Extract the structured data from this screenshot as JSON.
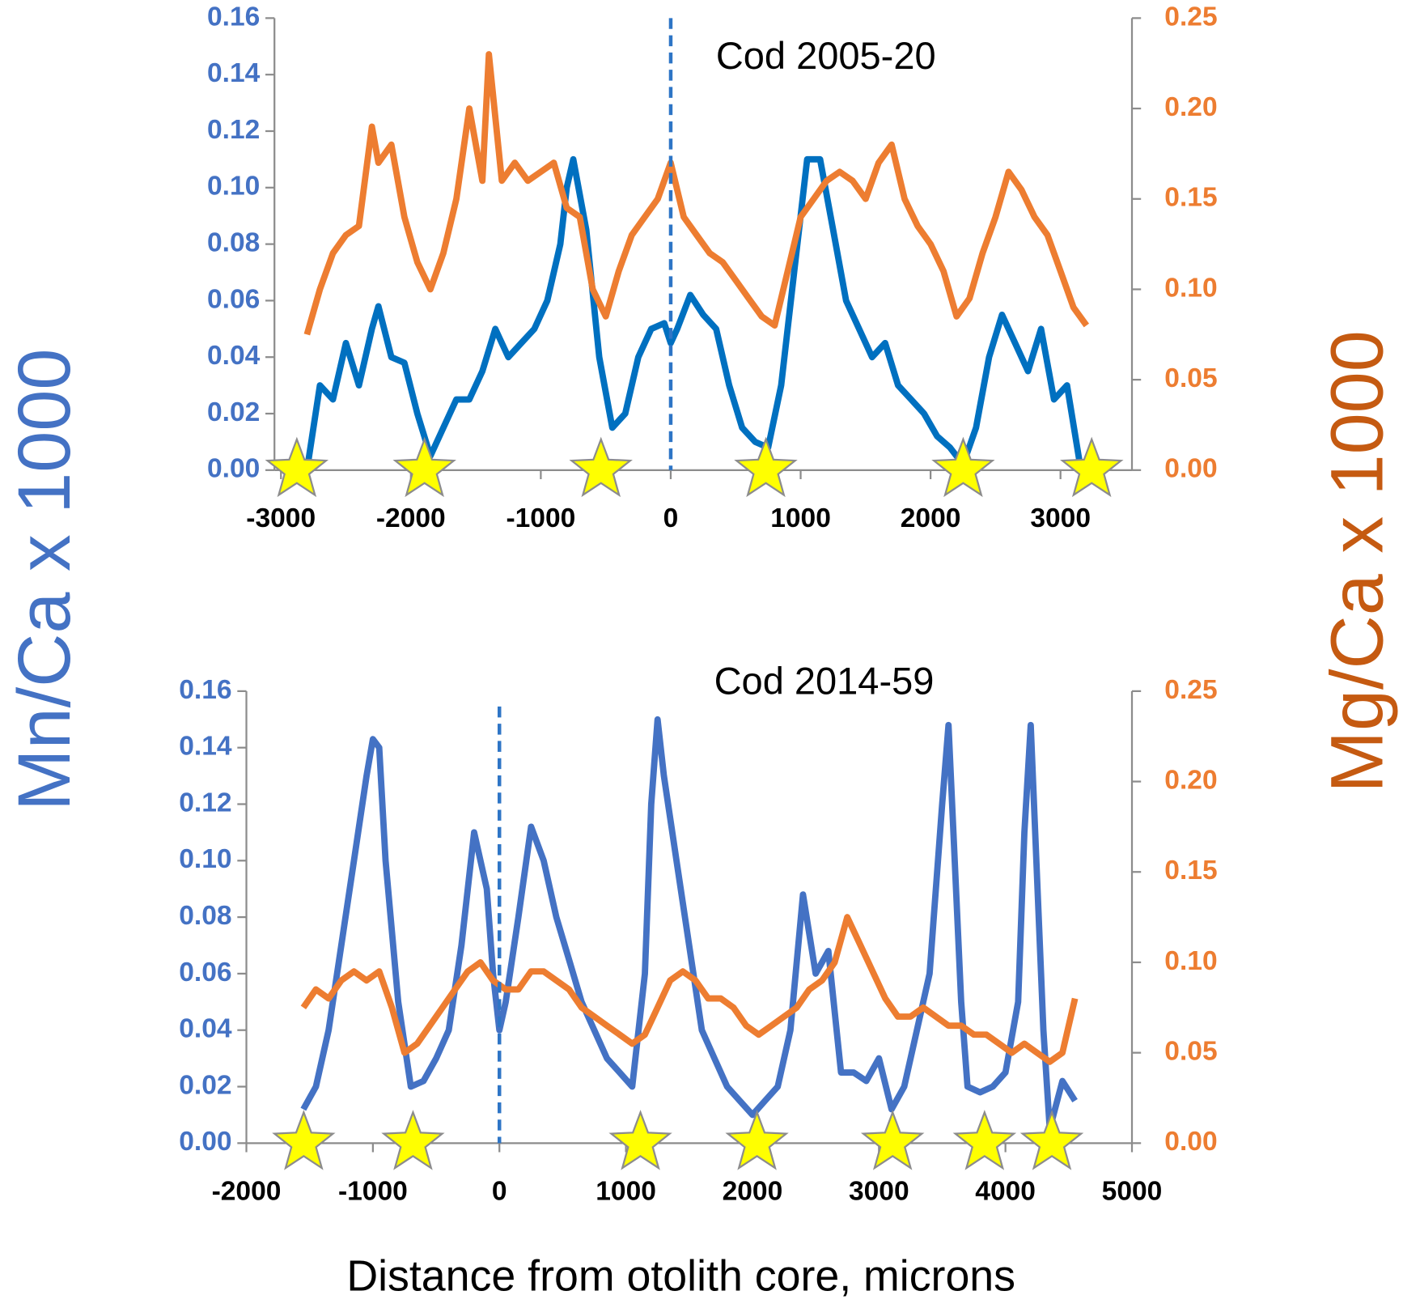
{
  "figure": {
    "y_label": "Mn/Ca x 1000",
    "y2_label": "Mg/Ca x 1000",
    "x_label": "Distance from otolith core, microns"
  },
  "chart_data": [
    {
      "type": "line",
      "title": "Cod 2005-20",
      "xlim": [
        -3050,
        3550
      ],
      "xticks": [
        -3000,
        -2000,
        -1000,
        0,
        1000,
        2000,
        3000
      ],
      "ylim": [
        0,
        0.16
      ],
      "yticks": [
        {
          "value": 0,
          "label": "0.00"
        },
        0.02,
        0.04,
        0.06,
        0.08,
        {
          "value": 0.1,
          "label": "0.10"
        },
        0.12,
        0.14,
        0.16
      ],
      "y2lim": [
        0,
        0.25
      ],
      "y2ticks": [
        {
          "value": 0,
          "label": "0.00"
        },
        0.05,
        {
          "value": 0.1,
          "label": "0.10"
        },
        0.15,
        {
          "value": 0.2,
          "label": "0.20"
        },
        0.25
      ],
      "reference_x": 0,
      "series": [
        {
          "color": "#0070c0",
          "axis": "y",
          "x": [
            -2800,
            -2700,
            -2600,
            -2500,
            -2400,
            -2300,
            -2250,
            -2150,
            -2050,
            -1950,
            -1850,
            -1750,
            -1650,
            -1550,
            -1450,
            -1350,
            -1250,
            -1150,
            -1050,
            -950,
            -850,
            -800,
            -750,
            -650,
            -550,
            -450,
            -350,
            -250,
            -150,
            -50,
            0,
            50,
            150,
            250,
            350,
            450,
            550,
            650,
            750,
            850,
            950,
            1050,
            1150,
            1250,
            1350,
            1450,
            1550,
            1650,
            1750,
            1850,
            1950,
            2050,
            2150,
            2250,
            2350,
            2450,
            2550,
            2650,
            2750,
            2850,
            2950,
            3050,
            3150
          ],
          "values": [
            0.0,
            0.03,
            0.025,
            0.045,
            0.03,
            0.05,
            0.058,
            0.04,
            0.038,
            0.02,
            0.005,
            0.015,
            0.025,
            0.025,
            0.035,
            0.05,
            0.04,
            0.045,
            0.05,
            0.06,
            0.08,
            0.1,
            0.11,
            0.085,
            0.04,
            0.015,
            0.02,
            0.04,
            0.05,
            0.052,
            0.045,
            0.05,
            0.062,
            0.055,
            0.05,
            0.03,
            0.015,
            0.01,
            0.008,
            0.03,
            0.07,
            0.11,
            0.11,
            0.085,
            0.06,
            0.05,
            0.04,
            0.045,
            0.03,
            0.025,
            0.02,
            0.012,
            0.008,
            0.002,
            0.015,
            0.04,
            0.055,
            0.045,
            0.035,
            0.05,
            0.025,
            0.03,
            0.002
          ]
        },
        {
          "color": "#ed7d31",
          "axis": "y2",
          "x": [
            -2800,
            -2700,
            -2600,
            -2500,
            -2400,
            -2300,
            -2250,
            -2150,
            -2050,
            -1950,
            -1850,
            -1750,
            -1650,
            -1550,
            -1450,
            -1400,
            -1300,
            -1200,
            -1100,
            -1000,
            -900,
            -800,
            -700,
            -600,
            -500,
            -400,
            -300,
            -200,
            -100,
            0,
            100,
            200,
            300,
            400,
            500,
            600,
            700,
            800,
            900,
            1000,
            1100,
            1200,
            1300,
            1400,
            1500,
            1600,
            1700,
            1800,
            1900,
            2000,
            2100,
            2200,
            2300,
            2400,
            2500,
            2600,
            2700,
            2800,
            2900,
            3000,
            3100,
            3200
          ],
          "values": [
            0.075,
            0.1,
            0.12,
            0.13,
            0.135,
            0.19,
            0.17,
            0.18,
            0.14,
            0.115,
            0.1,
            0.12,
            0.15,
            0.2,
            0.16,
            0.23,
            0.16,
            0.17,
            0.16,
            0.165,
            0.17,
            0.145,
            0.14,
            0.1,
            0.085,
            0.11,
            0.13,
            0.14,
            0.15,
            0.17,
            0.14,
            0.13,
            0.12,
            0.115,
            0.105,
            0.095,
            0.085,
            0.08,
            0.11,
            0.14,
            0.15,
            0.16,
            0.165,
            0.16,
            0.15,
            0.17,
            0.18,
            0.15,
            0.135,
            0.125,
            0.11,
            0.085,
            0.095,
            0.12,
            0.14,
            0.165,
            0.155,
            0.14,
            0.13,
            0.11,
            0.09,
            0.08
          ]
        }
      ],
      "stars": {
        "color": "#ffff00",
        "x": [
          -2878,
          -1895,
          -537,
          732,
          2251,
          3240
        ],
        "values": [
          0,
          0,
          0,
          0,
          0,
          0
        ]
      }
    },
    {
      "type": "line",
      "title": "Cod 2014-59",
      "xlim": [
        -2000,
        5000
      ],
      "xticks": [
        -2000,
        -1000,
        0,
        1000,
        2000,
        3000,
        4000,
        5000
      ],
      "ylim": [
        0,
        0.16
      ],
      "yticks": [
        {
          "value": 0,
          "label": "0.00"
        },
        0.02,
        0.04,
        0.06,
        0.08,
        {
          "value": 0.1,
          "label": "0.10"
        },
        0.12,
        0.14,
        0.16
      ],
      "y2lim": [
        0,
        0.25
      ],
      "y2ticks": [
        {
          "value": 0,
          "label": "0.00"
        },
        0.05,
        {
          "value": 0.1,
          "label": "0.10"
        },
        0.15,
        {
          "value": 0.2,
          "label": "0.20"
        },
        0.25
      ],
      "reference_x": 0,
      "series": [
        {
          "color": "#4472c4",
          "axis": "y",
          "x": [
            -1550,
            -1450,
            -1350,
            -1250,
            -1150,
            -1050,
            -1000,
            -950,
            -900,
            -800,
            -700,
            -600,
            -500,
            -400,
            -300,
            -200,
            -100,
            -50,
            0,
            50,
            150,
            250,
            350,
            450,
            550,
            650,
            750,
            850,
            950,
            1050,
            1150,
            1200,
            1250,
            1300,
            1400,
            1500,
            1600,
            1700,
            1800,
            1900,
            2000,
            2100,
            2200,
            2300,
            2400,
            2500,
            2600,
            2700,
            2800,
            2900,
            3000,
            3100,
            3200,
            3300,
            3400,
            3500,
            3550,
            3650,
            3700,
            3800,
            3900,
            4000,
            4100,
            4150,
            4200,
            4300,
            4350,
            4450,
            4550
          ],
          "values": [
            0.012,
            0.02,
            0.04,
            0.07,
            0.1,
            0.13,
            0.143,
            0.14,
            0.1,
            0.05,
            0.02,
            0.022,
            0.03,
            0.04,
            0.07,
            0.11,
            0.09,
            0.06,
            0.04,
            0.05,
            0.08,
            0.112,
            0.1,
            0.08,
            0.065,
            0.05,
            0.04,
            0.03,
            0.025,
            0.02,
            0.06,
            0.12,
            0.15,
            0.13,
            0.1,
            0.07,
            0.04,
            0.03,
            0.02,
            0.015,
            0.01,
            0.015,
            0.02,
            0.04,
            0.088,
            0.06,
            0.068,
            0.025,
            0.025,
            0.022,
            0.03,
            0.012,
            0.02,
            0.04,
            0.06,
            0.12,
            0.148,
            0.05,
            0.02,
            0.018,
            0.02,
            0.025,
            0.05,
            0.11,
            0.148,
            0.04,
            0.005,
            0.022,
            0.015
          ]
        },
        {
          "color": "#ed7d31",
          "axis": "y2",
          "x": [
            -1550,
            -1450,
            -1350,
            -1250,
            -1150,
            -1050,
            -950,
            -850,
            -750,
            -650,
            -550,
            -450,
            -350,
            -250,
            -150,
            -50,
            50,
            150,
            250,
            350,
            450,
            550,
            650,
            750,
            850,
            950,
            1050,
            1150,
            1250,
            1350,
            1450,
            1550,
            1650,
            1750,
            1850,
            1950,
            2050,
            2150,
            2250,
            2350,
            2450,
            2550,
            2650,
            2750,
            2850,
            2950,
            3050,
            3150,
            3250,
            3350,
            3450,
            3550,
            3650,
            3750,
            3850,
            3950,
            4050,
            4150,
            4250,
            4350,
            4450,
            4550
          ],
          "values": [
            0.075,
            0.085,
            0.08,
            0.09,
            0.095,
            0.09,
            0.095,
            0.075,
            0.05,
            0.055,
            0.065,
            0.075,
            0.085,
            0.095,
            0.1,
            0.09,
            0.085,
            0.085,
            0.095,
            0.095,
            0.09,
            0.085,
            0.075,
            0.07,
            0.065,
            0.06,
            0.055,
            0.06,
            0.075,
            0.09,
            0.095,
            0.09,
            0.08,
            0.08,
            0.075,
            0.065,
            0.06,
            0.065,
            0.07,
            0.075,
            0.085,
            0.09,
            0.1,
            0.125,
            0.11,
            0.095,
            0.08,
            0.07,
            0.07,
            0.075,
            0.07,
            0.065,
            0.065,
            0.06,
            0.06,
            0.055,
            0.05,
            0.055,
            0.05,
            0.045,
            0.05,
            0.08
          ]
        }
      ],
      "stars": {
        "color": "#ffff00",
        "x": [
          -1547,
          -683,
          1115,
          2036,
          3108,
          3835,
          4367
        ],
        "values": [
          0,
          0,
          0,
          0,
          0,
          0,
          0
        ]
      }
    }
  ]
}
